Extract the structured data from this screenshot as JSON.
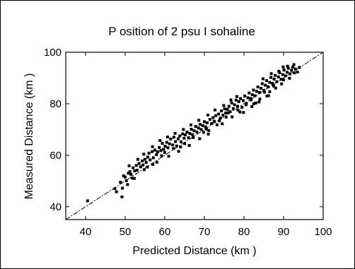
{
  "chart_data": {
    "type": "scatter",
    "title": "P osition of 2 psu I sohaline",
    "xlabel": "Predicted Distance (km )",
    "ylabel": "Measured Distance (km )",
    "xlim": [
      35,
      100
    ],
    "ylim": [
      35,
      100
    ],
    "x_ticks": [
      40,
      50,
      60,
      70,
      80,
      90,
      100
    ],
    "y_ticks": [
      40,
      60,
      80,
      100
    ],
    "x_tick_labels": [
      "40",
      "50",
      "60",
      "70",
      "80",
      "90",
      "100"
    ],
    "y_tick_labels": [
      "40",
      "60",
      "80",
      "100"
    ],
    "grid": false,
    "reference_line": {
      "style": "1:1 line",
      "from": [
        35,
        35
      ],
      "to": [
        100,
        100
      ]
    },
    "series": [
      {
        "points": [
          [
            40.5,
            42.3
          ],
          [
            47.4,
            47.0
          ],
          [
            47.8,
            45.8
          ],
          [
            48.8,
            49.5
          ],
          [
            49.2,
            43.8
          ],
          [
            49.3,
            47.2
          ],
          [
            49.6,
            52.0
          ],
          [
            50.0,
            51.5
          ],
          [
            50.3,
            50.1
          ],
          [
            50.6,
            48.6
          ],
          [
            50.8,
            53.0
          ],
          [
            51.2,
            53.6
          ],
          [
            51.5,
            52.5
          ],
          [
            52.0,
            55.1
          ],
          [
            52.4,
            53.9
          ],
          [
            52.8,
            56.0
          ],
          [
            53.0,
            54.2
          ],
          [
            53.5,
            56.8
          ],
          [
            53.9,
            55.5
          ],
          [
            54.3,
            57.8
          ],
          [
            54.5,
            56.2
          ],
          [
            55.0,
            58.4
          ],
          [
            55.3,
            57.2
          ],
          [
            55.7,
            59.3
          ],
          [
            56.0,
            60.8
          ],
          [
            56.3,
            58.2
          ],
          [
            56.8,
            61.4
          ],
          [
            57.1,
            59.0
          ],
          [
            57.5,
            62.0
          ],
          [
            57.9,
            60.2
          ],
          [
            58.2,
            61.3
          ],
          [
            58.6,
            63.0
          ],
          [
            59.0,
            61.8
          ],
          [
            59.4,
            64.6
          ],
          [
            59.7,
            62.3
          ],
          [
            60.1,
            63.5
          ],
          [
            60.5,
            65.0
          ],
          [
            60.8,
            62.9
          ],
          [
            61.2,
            64.4
          ],
          [
            61.5,
            66.3
          ],
          [
            62.0,
            64.0
          ],
          [
            62.3,
            67.0
          ],
          [
            62.7,
            65.3
          ],
          [
            63.0,
            63.6
          ],
          [
            63.4,
            66.4
          ],
          [
            63.8,
            67.5
          ],
          [
            64.1,
            65.2
          ],
          [
            64.5,
            68.3
          ],
          [
            64.9,
            66.6
          ],
          [
            65.2,
            67.9
          ],
          [
            65.6,
            69.0
          ],
          [
            66.0,
            66.8
          ],
          [
            66.3,
            68.4
          ],
          [
            66.7,
            70.1
          ],
          [
            67.0,
            68.0
          ],
          [
            67.4,
            69.5
          ],
          [
            67.8,
            71.2
          ],
          [
            68.1,
            69.0
          ],
          [
            68.5,
            70.6
          ],
          [
            68.9,
            72.0
          ],
          [
            69.2,
            70.0
          ],
          [
            69.6,
            71.5
          ],
          [
            70.0,
            73.0
          ],
          [
            70.3,
            71.0
          ],
          [
            70.7,
            72.6
          ],
          [
            71.1,
            69.6
          ],
          [
            71.4,
            73.9
          ],
          [
            71.8,
            72.3
          ],
          [
            72.2,
            74.6
          ],
          [
            72.5,
            73.2
          ],
          [
            72.9,
            75.4
          ],
          [
            73.2,
            71.8
          ],
          [
            73.6,
            76.0
          ],
          [
            74.0,
            74.4
          ],
          [
            74.3,
            77.2
          ],
          [
            74.7,
            75.6
          ],
          [
            75.1,
            78.0
          ],
          [
            75.4,
            76.4
          ],
          [
            75.8,
            77.8
          ],
          [
            76.2,
            79.0
          ],
          [
            76.5,
            76.9
          ],
          [
            76.9,
            80.3
          ],
          [
            77.3,
            78.1
          ],
          [
            77.6,
            79.6
          ],
          [
            78.0,
            81.4
          ],
          [
            78.4,
            79.0
          ],
          [
            78.7,
            80.8
          ],
          [
            79.1,
            82.0
          ],
          [
            79.5,
            78.6
          ],
          [
            79.8,
            81.2
          ],
          [
            80.2,
            83.0
          ],
          [
            80.6,
            80.1
          ],
          [
            81.0,
            82.3
          ],
          [
            81.3,
            84.2
          ],
          [
            81.7,
            82.0
          ],
          [
            82.1,
            83.5
          ],
          [
            82.4,
            85.3
          ],
          [
            82.8,
            83.1
          ],
          [
            83.2,
            84.8
          ],
          [
            83.5,
            86.5
          ],
          [
            83.9,
            84.4
          ],
          [
            84.3,
            86.0
          ],
          [
            84.6,
            87.8
          ],
          [
            85.0,
            85.2
          ],
          [
            85.4,
            87.2
          ],
          [
            85.7,
            89.0
          ],
          [
            86.1,
            86.6
          ],
          [
            86.5,
            88.3
          ],
          [
            86.8,
            90.2
          ],
          [
            87.2,
            87.9
          ],
          [
            87.6,
            89.6
          ],
          [
            87.9,
            91.0
          ],
          [
            88.3,
            88.6
          ],
          [
            88.7,
            90.4
          ],
          [
            89.0,
            92.0
          ],
          [
            89.4,
            89.5
          ],
          [
            89.8,
            91.3
          ],
          [
            90.1,
            93.1
          ],
          [
            90.5,
            90.8
          ],
          [
            90.9,
            92.2
          ],
          [
            91.2,
            93.8
          ],
          [
            91.6,
            91.6
          ],
          [
            92.0,
            93.0
          ],
          [
            92.3,
            94.2
          ],
          [
            92.7,
            92.0
          ],
          [
            93.0,
            93.5
          ],
          [
            93.5,
            92.3
          ],
          [
            94.0,
            94.1
          ],
          [
            86.5,
            84.7
          ],
          [
            88.0,
            86.1
          ],
          [
            84.0,
            81.8
          ],
          [
            85.8,
            83.0
          ],
          [
            83.0,
            80.3
          ],
          [
            61.0,
            59.6
          ],
          [
            58.0,
            57.3
          ],
          [
            66.2,
            63.8
          ],
          [
            71.0,
            68.2
          ],
          [
            74.5,
            72.2
          ],
          [
            77.0,
            74.9
          ],
          [
            79.0,
            76.8
          ],
          [
            82.5,
            80.0
          ],
          [
            89.5,
            87.7
          ],
          [
            91.5,
            89.9
          ],
          [
            63.5,
            61.5
          ],
          [
            68.8,
            66.4
          ],
          [
            55.6,
            55.4
          ],
          [
            52.3,
            51.0
          ],
          [
            57.0,
            56.4
          ],
          [
            60.0,
            61.1
          ],
          [
            65.0,
            64.5
          ],
          [
            70.5,
            70.2
          ],
          [
            75.5,
            74.8
          ],
          [
            80.5,
            79.6
          ],
          [
            85.2,
            84.5
          ],
          [
            90.0,
            89.3
          ],
          [
            76.0,
            76.5
          ],
          [
            78.5,
            77.5
          ],
          [
            81.8,
            81.5
          ],
          [
            87.5,
            86.9
          ],
          [
            73.8,
            73.4
          ],
          [
            69.8,
            68.9
          ],
          [
            67.2,
            66.9
          ],
          [
            64.0,
            63.2
          ],
          [
            62.2,
            62.6
          ],
          [
            59.2,
            59.8
          ],
          [
            54.8,
            54.4
          ],
          [
            51.8,
            51.1
          ],
          [
            88.8,
            92.6
          ],
          [
            86.9,
            91.7
          ],
          [
            84.8,
            89.7
          ],
          [
            91.0,
            94.6
          ],
          [
            92.6,
            95.2
          ],
          [
            89.9,
            94.3
          ],
          [
            78.2,
            82.8
          ],
          [
            76.7,
            81.5
          ],
          [
            74.9,
            79.3
          ],
          [
            72.7,
            77.6
          ],
          [
            70.9,
            75.6
          ],
          [
            68.6,
            73.6
          ],
          [
            66.6,
            71.8
          ],
          [
            64.7,
            70.0
          ],
          [
            62.6,
            68.5
          ],
          [
            60.7,
            67.1
          ],
          [
            58.8,
            65.7
          ],
          [
            56.9,
            63.3
          ],
          [
            54.7,
            60.4
          ],
          [
            53.2,
            58.4
          ],
          [
            51.0,
            55.9
          ],
          [
            79.9,
            76.6
          ],
          [
            82.0,
            78.9
          ],
          [
            83.8,
            80.7
          ],
          [
            86.2,
            83.1
          ]
        ]
      }
    ]
  }
}
